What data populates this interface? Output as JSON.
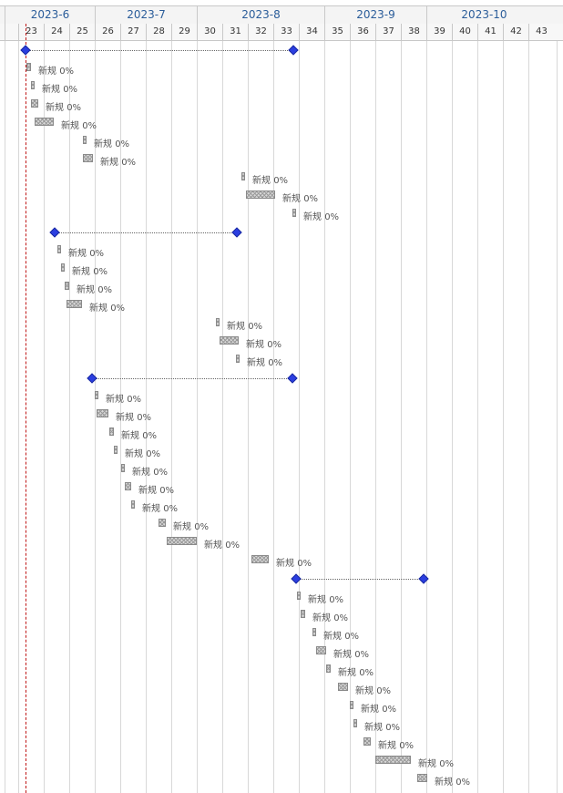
{
  "timeline": {
    "months": [
      {
        "label": "2023-6",
        "start_week": 22,
        "end_week": 26
      },
      {
        "label": "2023-7",
        "start_week": 26,
        "end_week": 30
      },
      {
        "label": "2023-8",
        "start_week": 30,
        "end_week": 35
      },
      {
        "label": "2023-9",
        "start_week": 35,
        "end_week": 39
      },
      {
        "label": "2023-10",
        "start_week": 39,
        "end_week": 43.5
      }
    ],
    "weeks": [
      "23",
      "24",
      "25",
      "26",
      "27",
      "28",
      "29",
      "30",
      "31",
      "32",
      "33",
      "34",
      "35",
      "36",
      "37",
      "38",
      "39",
      "40",
      "41",
      "42",
      "43"
    ],
    "today_week": 23.3
  },
  "summaries": [
    {
      "start": 23.3,
      "end": 33.8,
      "row": 0
    },
    {
      "start": 24.45,
      "end": 31.6,
      "row": 10
    },
    {
      "start": 25.9,
      "end": 33.75,
      "row": 18
    },
    {
      "start": 33.9,
      "end": 38.9,
      "row": 29
    }
  ],
  "tasks": [
    {
      "row": 1,
      "start": 23.35,
      "end": 23.5,
      "status": "新规",
      "progress": "0%"
    },
    {
      "row": 2,
      "start": 23.5,
      "end": 23.65,
      "status": "新规",
      "progress": "0%"
    },
    {
      "row": 3,
      "start": 23.5,
      "end": 23.8,
      "status": "新规",
      "progress": "0%"
    },
    {
      "row": 4,
      "start": 23.65,
      "end": 24.4,
      "status": "新规",
      "progress": "0%"
    },
    {
      "row": 5,
      "start": 25.55,
      "end": 25.7,
      "status": "新规",
      "progress": "0%"
    },
    {
      "row": 6,
      "start": 25.55,
      "end": 25.95,
      "status": "新规",
      "progress": "0%"
    },
    {
      "row": 7,
      "start": 31.75,
      "end": 31.9,
      "status": "新规",
      "progress": "0%"
    },
    {
      "row": 8,
      "start": 31.95,
      "end": 33.1,
      "status": "新规",
      "progress": "0%"
    },
    {
      "row": 9,
      "start": 33.75,
      "end": 33.9,
      "status": "新规",
      "progress": "0%"
    },
    {
      "row": 11,
      "start": 24.55,
      "end": 24.7,
      "status": "新规",
      "progress": "0%"
    },
    {
      "row": 12,
      "start": 24.7,
      "end": 24.85,
      "status": "新规",
      "progress": "0%"
    },
    {
      "row": 13,
      "start": 24.85,
      "end": 25.0,
      "status": "新规",
      "progress": "0%"
    },
    {
      "row": 14,
      "start": 24.9,
      "end": 25.5,
      "status": "新规",
      "progress": "0%"
    },
    {
      "row": 15,
      "start": 30.75,
      "end": 30.9,
      "status": "新规",
      "progress": "0%"
    },
    {
      "row": 16,
      "start": 30.9,
      "end": 31.65,
      "status": "新规",
      "progress": "0%"
    },
    {
      "row": 17,
      "start": 31.55,
      "end": 31.7,
      "status": "新规",
      "progress": "0%"
    },
    {
      "row": 19,
      "start": 26.0,
      "end": 26.15,
      "status": "新规",
      "progress": "0%"
    },
    {
      "row": 20,
      "start": 26.1,
      "end": 26.55,
      "status": "新规",
      "progress": "0%"
    },
    {
      "row": 21,
      "start": 26.6,
      "end": 26.75,
      "status": "新规",
      "progress": "0%"
    },
    {
      "row": 22,
      "start": 26.75,
      "end": 26.9,
      "status": "新规",
      "progress": "0%"
    },
    {
      "row": 23,
      "start": 27.05,
      "end": 27.2,
      "status": "新规",
      "progress": "0%"
    },
    {
      "row": 24,
      "start": 27.2,
      "end": 27.45,
      "status": "新规",
      "progress": "0%"
    },
    {
      "row": 25,
      "start": 27.45,
      "end": 27.6,
      "status": "新规",
      "progress": "0%"
    },
    {
      "row": 26,
      "start": 28.5,
      "end": 28.8,
      "status": "新规",
      "progress": "0%"
    },
    {
      "row": 27,
      "start": 28.85,
      "end": 30.0,
      "status": "新规",
      "progress": "0%"
    },
    {
      "row": 28,
      "start": 32.15,
      "end": 32.85,
      "status": "新规",
      "progress": "0%"
    },
    {
      "row": 30,
      "start": 33.95,
      "end": 34.1,
      "status": "新规",
      "progress": "0%"
    },
    {
      "row": 31,
      "start": 34.1,
      "end": 34.25,
      "status": "新规",
      "progress": "0%"
    },
    {
      "row": 32,
      "start": 34.55,
      "end": 34.7,
      "status": "新规",
      "progress": "0%"
    },
    {
      "row": 33,
      "start": 34.7,
      "end": 35.1,
      "status": "新规",
      "progress": "0%"
    },
    {
      "row": 34,
      "start": 35.1,
      "end": 35.25,
      "status": "新规",
      "progress": "0%"
    },
    {
      "row": 35,
      "start": 35.55,
      "end": 35.95,
      "status": "新规",
      "progress": "0%"
    },
    {
      "row": 36,
      "start": 36.0,
      "end": 36.15,
      "status": "新规",
      "progress": "0%"
    },
    {
      "row": 37,
      "start": 36.15,
      "end": 36.3,
      "status": "新规",
      "progress": "0%"
    },
    {
      "row": 38,
      "start": 36.55,
      "end": 36.85,
      "status": "新规",
      "progress": "0%"
    },
    {
      "row": 39,
      "start": 37.0,
      "end": 38.4,
      "status": "新规",
      "progress": "0%"
    },
    {
      "row": 40,
      "start": 38.65,
      "end": 39.05,
      "status": "新规",
      "progress": "0%"
    }
  ]
}
